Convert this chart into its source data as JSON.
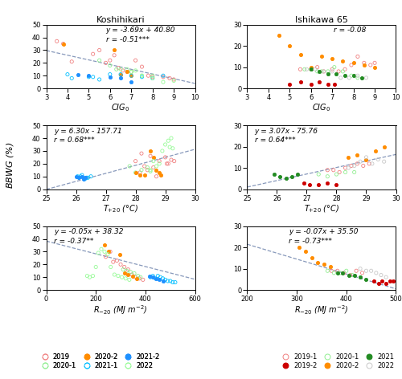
{
  "koshi_title": "Koshihikari",
  "ishi_title": "Ishikawa 65",
  "koshi_cig0_eq": "y = -3.69x + 40.80",
  "koshi_cig0_r": "r = -0.51***",
  "koshi_t20_eq": "y = 6.30x - 157.71",
  "koshi_t20_r": "r = 0.68***",
  "koshi_r20_eq": "y = -0.05x + 38.32",
  "koshi_r20_r": "r = -0.37**",
  "ishi_cig0_r": "r = -0.08",
  "ishi_t20_eq": "y = 3.07x - 75.76",
  "ishi_t20_r": "r = 0.64***",
  "ishi_r20_eq": "y = -0.07x + 35.50",
  "ishi_r20_r": "r = -0.73***",
  "c_2019": "#F08080",
  "c_2020_1": "#90EE90",
  "c_2020_2": "#FF8C00",
  "c_2021_1": "#00BFFF",
  "c_2021_2": "#1E90FF",
  "c_2022": "#98FB98",
  "c_ishi_2019_1": "#F08080",
  "c_ishi_2019_2": "#CC0000",
  "c_ishi_2020_1": "#90EE90",
  "c_ishi_2020_2": "#FF8C00",
  "c_ishi_2021": "#228B22",
  "c_ishi_2022": "#C8C8C8",
  "line_color": "#8899BB",
  "koshi_cig0": {
    "2019": {
      "x": [
        3.5,
        3.8,
        4.2,
        5.2,
        5.5,
        5.8,
        6.0,
        6.2,
        6.4,
        6.6,
        6.8,
        7.0,
        7.2,
        7.5,
        7.8,
        8.0,
        8.5,
        8.8,
        9.0
      ],
      "y": [
        37,
        35,
        21,
        27,
        30,
        20,
        22,
        26,
        16,
        14,
        13,
        13,
        22,
        17,
        10,
        9,
        9,
        8,
        7
      ]
    },
    "2020_1": {
      "x": [
        5.5,
        6.0,
        6.3,
        6.8,
        7.0,
        7.5,
        8.0
      ],
      "y": [
        22,
        18,
        15,
        15,
        13,
        10,
        10
      ]
    },
    "2020_2": {
      "x": [
        3.8,
        6.2,
        6.5,
        6.8,
        7.0
      ],
      "y": [
        35,
        30,
        11,
        13,
        10
      ]
    },
    "2021_1": {
      "x": [
        4.0,
        4.2,
        5.0,
        5.2,
        5.5,
        6.0,
        6.5,
        7.0,
        7.5,
        8.0,
        8.5
      ],
      "y": [
        11,
        8,
        9,
        9,
        7,
        11,
        11,
        10,
        9,
        8,
        10
      ]
    },
    "2021_2": {
      "x": [
        4.5,
        5.0,
        6.0,
        6.5,
        7.0
      ],
      "y": [
        11,
        10,
        9,
        8,
        5
      ]
    },
    "2022": {
      "x": [
        6.5,
        7.0,
        7.2,
        7.5,
        8.0,
        8.5,
        9.0
      ],
      "y": [
        15,
        13,
        14,
        10,
        8,
        5,
        6
      ]
    }
  },
  "koshi_t20": {
    "2019": {
      "x": [
        28.0,
        28.2,
        28.4,
        28.6,
        28.8,
        29.0,
        29.1,
        29.2,
        29.3,
        28.5,
        28.3,
        28.7,
        29.05,
        28.15
      ],
      "y": [
        22,
        28,
        15,
        17,
        22,
        25,
        20,
        23,
        22,
        26,
        18,
        10,
        20,
        13
      ]
    },
    "2020_1": {
      "x": [
        27.8,
        28.0,
        28.2,
        28.4,
        28.5
      ],
      "y": [
        18,
        13,
        15,
        17,
        14
      ]
    },
    "2020_2": {
      "x": [
        28.0,
        28.15,
        28.3,
        28.5,
        28.6,
        28.7,
        28.8,
        28.85
      ],
      "y": [
        13,
        11,
        11,
        30,
        25,
        15,
        13,
        11
      ]
    },
    "2021_1": {
      "x": [
        26.05,
        26.1,
        26.2,
        26.3,
        26.4,
        26.5,
        26.15,
        26.35
      ],
      "y": [
        10,
        9,
        11,
        8,
        9,
        10,
        10,
        9
      ]
    },
    "2021_2": {
      "x": [
        26.0,
        26.1,
        26.2,
        26.25,
        26.3
      ],
      "y": [
        10,
        9,
        10,
        8,
        9
      ]
    },
    "2022": {
      "x": [
        28.5,
        28.7,
        28.8,
        29.0,
        29.1,
        29.2,
        29.25,
        28.6,
        28.9,
        29.15
      ],
      "y": [
        15,
        18,
        20,
        35,
        38,
        40,
        32,
        22,
        30,
        33
      ]
    }
  },
  "koshi_r20": {
    "2019": {
      "x": [
        240,
        258,
        270,
        285,
        300,
        315,
        330,
        345,
        360,
        375,
        390
      ],
      "y": [
        26,
        30,
        22,
        23,
        20,
        18,
        16,
        12,
        10,
        9,
        8
      ]
    },
    "2020_1": {
      "x": [
        310,
        325,
        340,
        355,
        370,
        380
      ],
      "y": [
        16,
        15,
        14,
        13,
        11,
        10
      ]
    },
    "2020_2": {
      "x": [
        235,
        250,
        295,
        315,
        330,
        350,
        365
      ],
      "y": [
        35,
        30,
        28,
        13,
        12,
        11,
        9
      ]
    },
    "2021_1": {
      "x": [
        420,
        430,
        440,
        450,
        460,
        470,
        480,
        490,
        500,
        510,
        520
      ],
      "y": [
        10,
        11,
        9,
        11,
        10,
        9,
        8,
        7,
        7,
        6,
        6
      ]
    },
    "2021_2": {
      "x": [
        415,
        428,
        442,
        455,
        470
      ],
      "y": [
        11,
        10,
        9,
        8,
        7
      ]
    },
    "2022": {
      "x": [
        165,
        175,
        188,
        200,
        210,
        222,
        235,
        248,
        260,
        275,
        290,
        305,
        320,
        335
      ],
      "y": [
        11,
        10,
        11,
        18,
        29,
        32,
        30,
        28,
        18,
        12,
        11,
        10,
        9,
        8
      ]
    }
  },
  "ishi_cig0": {
    "2019_1": {
      "x": [
        5.5,
        6.0,
        6.3,
        6.6,
        7.0,
        7.3,
        7.6,
        7.9,
        8.2,
        8.5,
        8.8,
        9.0
      ],
      "y": [
        9,
        9,
        10,
        8,
        9,
        8,
        9,
        11,
        15,
        12,
        11,
        12
      ]
    },
    "2019_2": {
      "x": [
        5.0,
        5.5,
        6.0,
        6.4,
        6.8,
        7.1
      ],
      "y": [
        2,
        3,
        2,
        3,
        2,
        2
      ]
    },
    "2020_1": {
      "x": [
        5.7,
        6.0,
        6.3,
        6.5,
        6.8,
        7.1,
        7.5,
        7.9,
        8.2
      ],
      "y": [
        9,
        9,
        8,
        8,
        8,
        10,
        8,
        6,
        5
      ]
    },
    "2020_2": {
      "x": [
        4.5,
        5.0,
        5.5,
        6.0,
        6.5,
        7.0,
        7.5,
        8.0,
        8.5,
        9.0
      ],
      "y": [
        25,
        20,
        16,
        10,
        15,
        14,
        13,
        12,
        11,
        10
      ]
    },
    "2021": {
      "x": [
        6.0,
        6.4,
        6.8,
        7.2,
        7.6,
        8.0,
        8.4
      ],
      "y": [
        9,
        8,
        7,
        7,
        6,
        6,
        5
      ]
    },
    "2022": {
      "x": [
        5.8,
        6.2,
        6.6,
        7.0,
        7.4,
        7.8,
        8.2,
        8.6
      ],
      "y": [
        9,
        9,
        8,
        8,
        5,
        5,
        6,
        5
      ]
    }
  },
  "ishi_t20": {
    "2019_1": {
      "x": [
        27.7,
        27.9,
        28.1,
        28.3,
        28.5,
        28.7,
        28.9,
        29.1
      ],
      "y": [
        9,
        9,
        8,
        10,
        11,
        12,
        11,
        12
      ]
    },
    "2019_2": {
      "x": [
        26.9,
        27.1,
        27.4,
        27.7,
        28.0
      ],
      "y": [
        3,
        2,
        2,
        3,
        2
      ]
    },
    "2020_1": {
      "x": [
        27.4,
        27.7,
        28.0,
        28.3,
        28.6
      ],
      "y": [
        7,
        6,
        7,
        8,
        8
      ]
    },
    "2020_2": {
      "x": [
        28.4,
        28.7,
        29.0,
        29.3,
        29.6
      ],
      "y": [
        15,
        16,
        14,
        18,
        20
      ]
    },
    "2021": {
      "x": [
        25.9,
        26.1,
        26.3,
        26.5,
        26.7
      ],
      "y": [
        7,
        6,
        5,
        6,
        7
      ]
    },
    "2022": {
      "x": [
        28.4,
        28.6,
        28.8,
        29.0,
        29.2,
        29.4,
        29.6
      ],
      "y": [
        10,
        11,
        13,
        15,
        12,
        14,
        13
      ]
    }
  },
  "ishi_r20": {
    "2019_1": {
      "x": [
        370,
        382,
        395,
        408,
        420,
        432
      ],
      "y": [
        9,
        9,
        8,
        7,
        9,
        8
      ]
    },
    "2019_2": {
      "x": [
        455,
        465,
        472,
        480,
        488,
        495
      ],
      "y": [
        4,
        3,
        4,
        3,
        4,
        4
      ]
    },
    "2020_1": {
      "x": [
        362,
        375,
        388,
        400,
        412
      ],
      "y": [
        9,
        8,
        8,
        9,
        7
      ]
    },
    "2020_2": {
      "x": [
        305,
        318,
        330,
        342,
        355,
        368
      ],
      "y": [
        20,
        18,
        15,
        13,
        12,
        11
      ]
    },
    "2021": {
      "x": [
        382,
        393,
        405,
        416,
        428,
        440
      ],
      "y": [
        8,
        8,
        7,
        7,
        6,
        5
      ]
    },
    "2022": {
      "x": [
        428,
        440,
        450,
        460,
        470,
        480
      ],
      "y": [
        10,
        9,
        9,
        8,
        7,
        6
      ]
    }
  }
}
